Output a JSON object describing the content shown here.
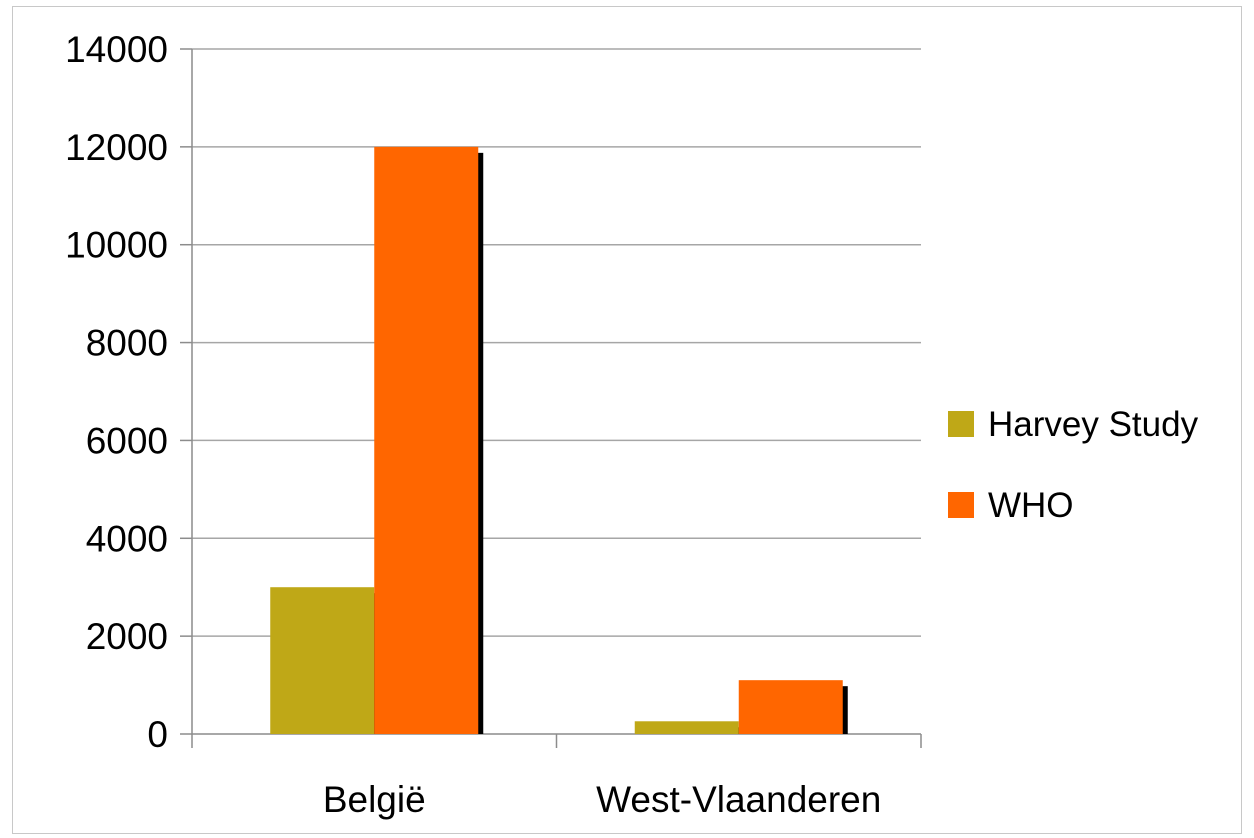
{
  "chart_data": {
    "type": "bar",
    "categories": [
      "België",
      "West-Vlaanderen"
    ],
    "series": [
      {
        "name": "Harvey Study",
        "values": [
          3000,
          260
        ],
        "color": "#bfa817"
      },
      {
        "name": "WHO",
        "values": [
          12000,
          1100
        ],
        "color": "#ff6600"
      }
    ],
    "ylim": [
      0,
      14000
    ],
    "yticks": [
      0,
      2000,
      4000,
      6000,
      8000,
      10000,
      12000,
      14000
    ],
    "ytick_labels": [
      "0",
      "2000",
      "4000",
      "6000",
      "8000",
      "10000",
      "12000",
      "14000"
    ],
    "grid": true,
    "legend_position": "right",
    "title": "",
    "xlabel": "",
    "ylabel": ""
  }
}
